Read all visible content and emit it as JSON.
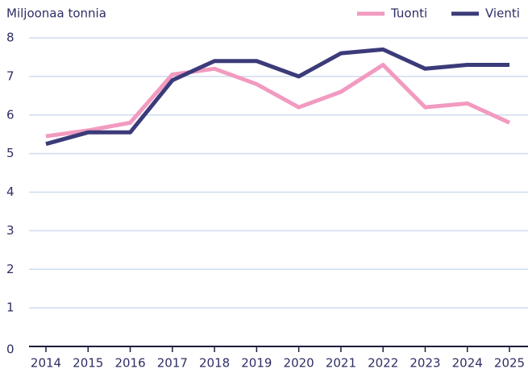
{
  "chart_data": {
    "type": "line",
    "y_label": "Miljoonaa tonnia",
    "categories": [
      "2014",
      "2015",
      "2016",
      "2017",
      "2018",
      "2019",
      "2020",
      "2021",
      "2022",
      "2023",
      "2024",
      "2025"
    ],
    "series": [
      {
        "name": "Tuonti",
        "color": "#f29ac0",
        "values": [
          5.45,
          5.6,
          5.8,
          7.05,
          7.2,
          6.8,
          6.2,
          6.6,
          7.3,
          6.2,
          6.3,
          5.8
        ]
      },
      {
        "name": "Vienti",
        "color": "#3b3b7a",
        "values": [
          5.25,
          5.55,
          5.55,
          6.9,
          7.4,
          7.4,
          7.0,
          7.6,
          7.7,
          7.2,
          7.3,
          7.3
        ]
      }
    ],
    "ylim": [
      0,
      8
    ],
    "yticks": [
      0,
      1,
      2,
      3,
      4,
      5,
      6,
      7,
      8
    ],
    "grid": true,
    "legend": "top-right"
  }
}
